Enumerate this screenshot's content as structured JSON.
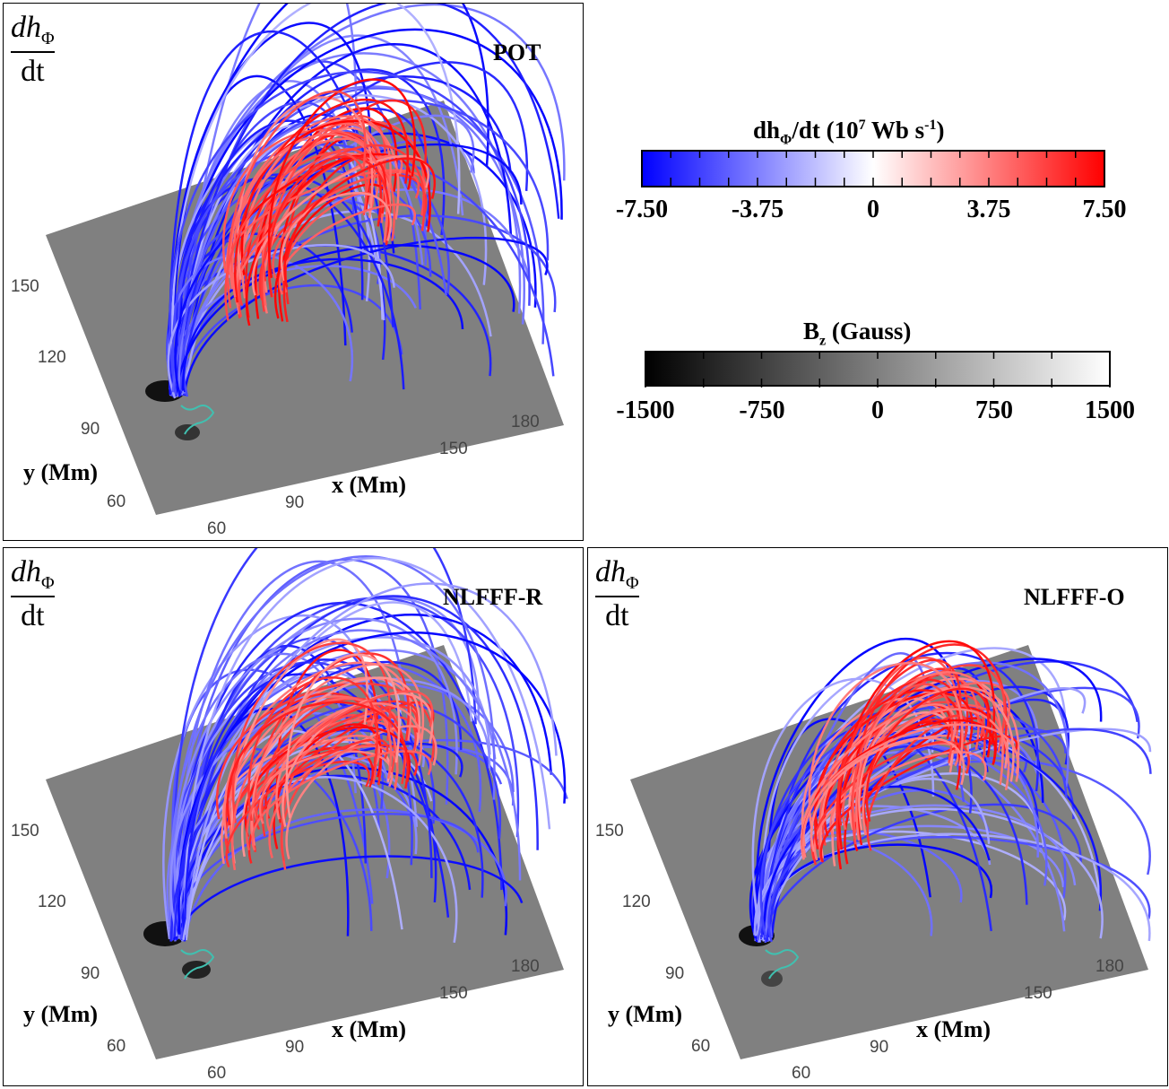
{
  "panels": [
    {
      "label": "POT",
      "frac_num": "dh",
      "frac_sub": "Φ",
      "frac_den": "dt",
      "xaxis_title": "x (Mm)",
      "yaxis_title": "y (Mm)",
      "x_ticks": [
        "60",
        "90",
        "150",
        "180"
      ],
      "y_ticks": [
        "60",
        "90",
        "120",
        "150"
      ]
    },
    {
      "label": "NLFFF-R",
      "frac_num": "dh",
      "frac_sub": "Φ",
      "frac_den": "dt",
      "xaxis_title": "x (Mm)",
      "yaxis_title": "y (Mm)",
      "x_ticks": [
        "60",
        "90",
        "150",
        "180"
      ],
      "y_ticks": [
        "60",
        "90",
        "120",
        "150"
      ]
    },
    {
      "label": "NLFFF-O",
      "frac_num": "dh",
      "frac_sub": "Φ",
      "frac_den": "dt",
      "xaxis_title": "x (Mm)",
      "yaxis_title": "y (Mm)",
      "x_ticks": [
        "60",
        "90",
        "150",
        "180"
      ],
      "y_ticks": [
        "60",
        "90",
        "120",
        "150"
      ]
    }
  ],
  "colorbars": {
    "dhdt": {
      "title_pre": "dh",
      "title_sub": "Φ",
      "title_mid": "/dt (10",
      "title_sup": "7",
      "title_post": " Wb s",
      "title_sup2": "-1",
      "title_end": ")",
      "ticks": [
        "-7.50",
        "-3.75",
        "0",
        "3.75",
        "7.50"
      ],
      "colors": [
        "#0000ff",
        "#ffffff",
        "#ff0000"
      ]
    },
    "bz": {
      "title_pre": "B",
      "title_sub": "z",
      "title_post": " (Gauss)",
      "ticks": [
        "-1500",
        "-750",
        "0",
        "750",
        "1500"
      ],
      "colors": [
        "#000000",
        "#ffffff"
      ]
    }
  },
  "colors": {
    "negative": "#0000ff",
    "positive": "#ff0000",
    "plane": "#808080",
    "contour": "#40c0b0"
  }
}
